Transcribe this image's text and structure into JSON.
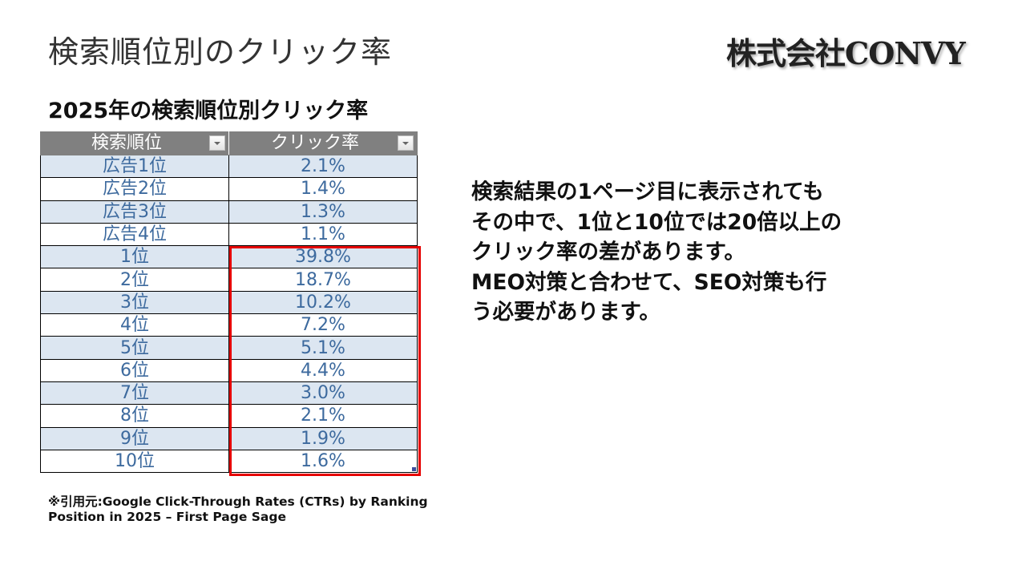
{
  "slide": {
    "title": "検索順位別のクリック率",
    "brand": "株式会社CONVY",
    "subtitle": "2025年の検索順位別クリック率"
  },
  "table": {
    "headers": [
      "検索順位",
      "クリック率"
    ],
    "rows": [
      {
        "rank": "広告1位",
        "ctr": "2.1%"
      },
      {
        "rank": "広告2位",
        "ctr": "1.4%"
      },
      {
        "rank": "広告3位",
        "ctr": "1.3%"
      },
      {
        "rank": "広告4位",
        "ctr": "1.1%"
      },
      {
        "rank": "1位",
        "ctr": "39.8%"
      },
      {
        "rank": "2位",
        "ctr": "18.7%"
      },
      {
        "rank": "3位",
        "ctr": "10.2%"
      },
      {
        "rank": "4位",
        "ctr": "7.2%"
      },
      {
        "rank": "5位",
        "ctr": "5.1%"
      },
      {
        "rank": "6位",
        "ctr": "4.4%"
      },
      {
        "rank": "7位",
        "ctr": "3.0%"
      },
      {
        "rank": "8位",
        "ctr": "2.1%"
      },
      {
        "rank": "9位",
        "ctr": "1.9%"
      },
      {
        "rank": "10位",
        "ctr": "1.6%"
      }
    ],
    "highlight_color": "#e60000",
    "header_bg": "#808080",
    "band_color": "#dce6f1",
    "text_color": "#3d6a9e"
  },
  "source": {
    "line1": "※引用元:Google Click-Through Rates (CTRs) by Ranking",
    "line2": "Position in 2025 – First Page Sage"
  },
  "body": {
    "lines": [
      "検索結果の1ページ目に表示されても",
      "その中で、1位と10位では20倍以上の",
      "クリック率の差があります。",
      "MEO対策と合わせて、SEO対策も行",
      "う必要があります。"
    ]
  }
}
